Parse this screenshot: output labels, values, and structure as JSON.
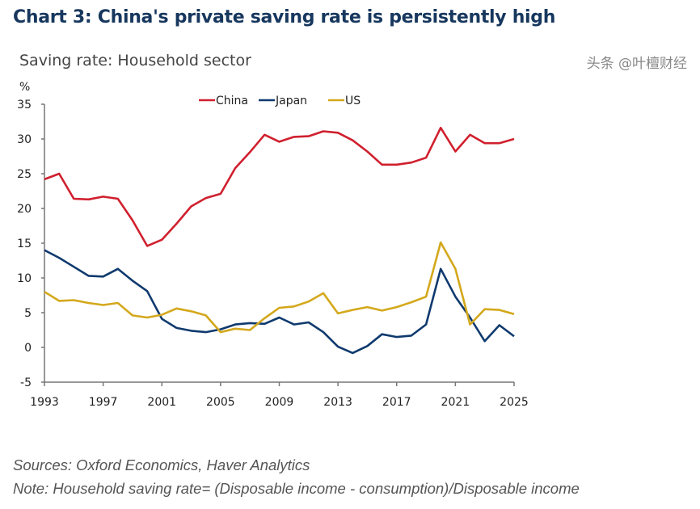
{
  "title": "Chart 3: China's private saving rate is persistently high",
  "subtitle": "Saving rate: Household sector",
  "sources": "Sources: Oxford Economics, Haver Analytics",
  "note": "Note: Household saving rate= (Disposable income - consumption)/Disposable income",
  "watermark": "头条 @叶檀财经",
  "chart_data": {
    "type": "line",
    "title": "Saving rate: Household sector",
    "ylabel": "%",
    "xlabel": "",
    "ylim": [
      -5,
      35
    ],
    "xlim": [
      1993,
      2025
    ],
    "yticks": [
      -5,
      0,
      5,
      10,
      15,
      20,
      25,
      30,
      35
    ],
    "xticks": [
      1993,
      1997,
      2001,
      2005,
      2009,
      2013,
      2017,
      2021,
      2025
    ],
    "grid": false,
    "legend": "top-center",
    "x": [
      1993,
      1994,
      1995,
      1996,
      1997,
      1998,
      1999,
      2000,
      2001,
      2002,
      2003,
      2004,
      2005,
      2006,
      2007,
      2008,
      2009,
      2010,
      2011,
      2012,
      2013,
      2014,
      2015,
      2016,
      2017,
      2018,
      2019,
      2020,
      2021,
      2022,
      2023,
      2024,
      2025
    ],
    "series": [
      {
        "name": "China",
        "color": "#d0202e",
        "values": [
          24.2,
          25.0,
          21.4,
          21.3,
          21.7,
          21.4,
          18.3,
          14.6,
          15.5,
          17.8,
          20.3,
          21.5,
          22.1,
          25.8,
          28.1,
          30.6,
          29.6,
          30.3,
          30.4,
          31.1,
          30.9,
          29.8,
          28.2,
          26.3,
          26.3,
          26.6,
          27.3,
          31.6,
          28.2,
          30.6,
          29.4,
          29.4,
          30.0
        ]
      },
      {
        "name": "Japan",
        "color": "#0f3a6e",
        "values": [
          14.0,
          12.9,
          11.6,
          10.3,
          10.2,
          11.3,
          9.6,
          8.1,
          4.1,
          2.8,
          2.4,
          2.2,
          2.6,
          3.3,
          3.5,
          3.4,
          4.3,
          3.3,
          3.6,
          2.2,
          0.1,
          -0.8,
          0.2,
          1.9,
          1.5,
          1.7,
          3.3,
          11.3,
          7.3,
          4.3,
          0.9,
          3.2,
          1.6
        ]
      },
      {
        "name": "US",
        "color": "#d4a81c",
        "values": [
          8.0,
          6.7,
          6.8,
          6.4,
          6.1,
          6.4,
          4.6,
          4.3,
          4.7,
          5.6,
          5.2,
          4.6,
          2.2,
          2.7,
          2.5,
          4.2,
          5.7,
          5.9,
          6.6,
          7.8,
          4.9,
          5.4,
          5.8,
          5.3,
          5.8,
          6.5,
          7.3,
          15.1,
          11.3,
          3.3,
          5.5,
          5.4,
          4.8
        ]
      }
    ]
  }
}
